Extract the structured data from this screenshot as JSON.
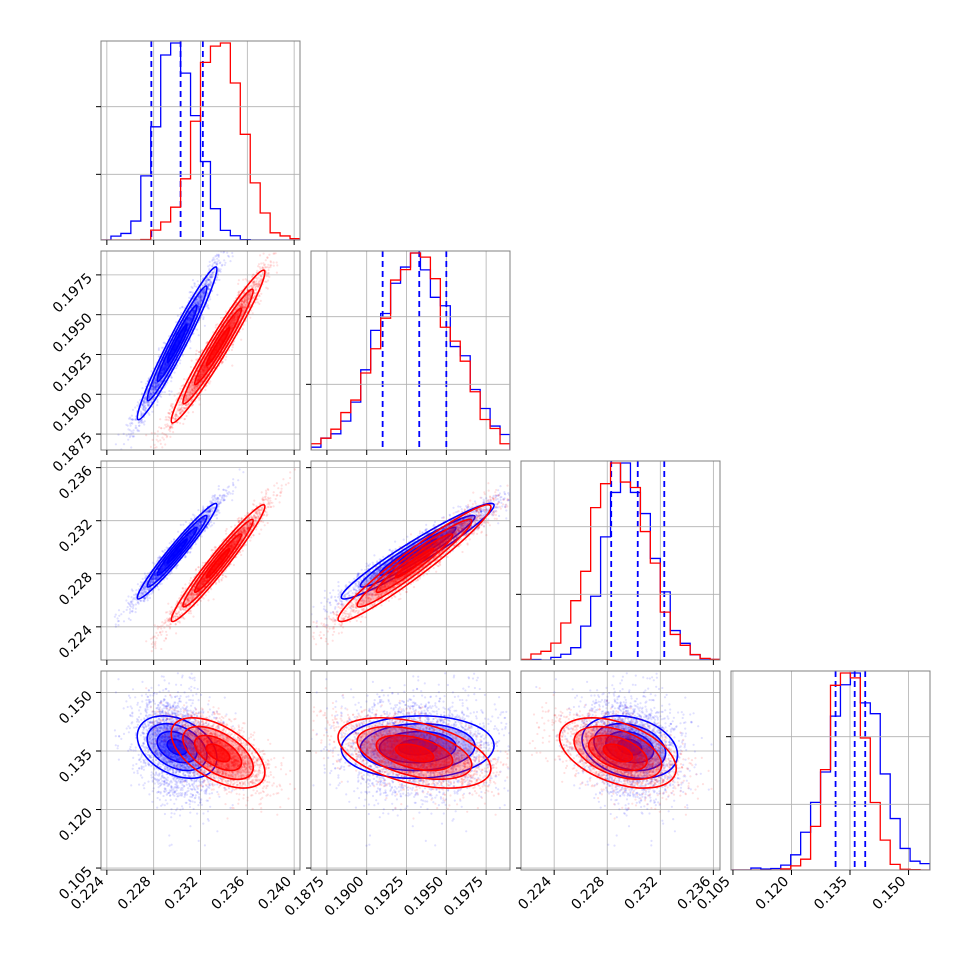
{
  "chart_data": {
    "type": "corner",
    "params": [
      {
        "ticks": [
          "0.224",
          "0.228",
          "0.232",
          "0.236",
          "0.240"
        ],
        "values": [
          0.224,
          0.228,
          0.232,
          0.236,
          0.24
        ],
        "range": [
          0.2235,
          0.2405
        ]
      },
      {
        "ticks": [
          "0.1875",
          "0.1900",
          "0.1925",
          "0.1950",
          "0.1975"
        ],
        "values": [
          0.1875,
          0.19,
          0.1925,
          0.195,
          0.1975
        ],
        "range": [
          0.1865,
          0.199
        ]
      },
      {
        "ticks": [
          "0.224",
          "0.228",
          "0.232",
          "0.236"
        ],
        "values": [
          0.224,
          0.228,
          0.232,
          0.236
        ],
        "range": [
          0.2215,
          0.2365
        ]
      },
      {
        "ticks": [
          "0.105",
          "0.120",
          "0.135",
          "0.150"
        ],
        "values": [
          0.105,
          0.12,
          0.135,
          0.15
        ],
        "range": [
          0.1045,
          0.1555
        ]
      }
    ],
    "series": [
      {
        "color": "#0000ff",
        "means": [
          0.23,
          0.1932,
          0.2297,
          0.136
        ],
        "sds": [
          0.0017,
          0.0024,
          0.0018,
          0.004
        ],
        "correlations": {
          "1-0": 0.97,
          "2-0": 0.97,
          "2-1": 0.96,
          "3-0": -0.35,
          "3-1": 0.05,
          "3-2": -0.25
        },
        "quantiles": [
          [
            0.2278,
            0.2303,
            0.2322
          ],
          [
            0.191,
            0.1933,
            0.195
          ],
          [
            0.2283,
            0.2303,
            0.2323
          ],
          [
            0.1313,
            0.1362,
            0.1389
          ]
        ]
      },
      {
        "color": "#ff0000",
        "means": [
          0.2335,
          0.193,
          0.2288,
          0.1345
        ],
        "sds": [
          0.002,
          0.0024,
          0.0022,
          0.0045
        ],
        "correlations": {
          "1-0": 0.97,
          "2-0": 0.97,
          "2-1": 0.96,
          "3-0": -0.55,
          "3-1": -0.45,
          "3-2": -0.45
        }
      }
    ]
  }
}
